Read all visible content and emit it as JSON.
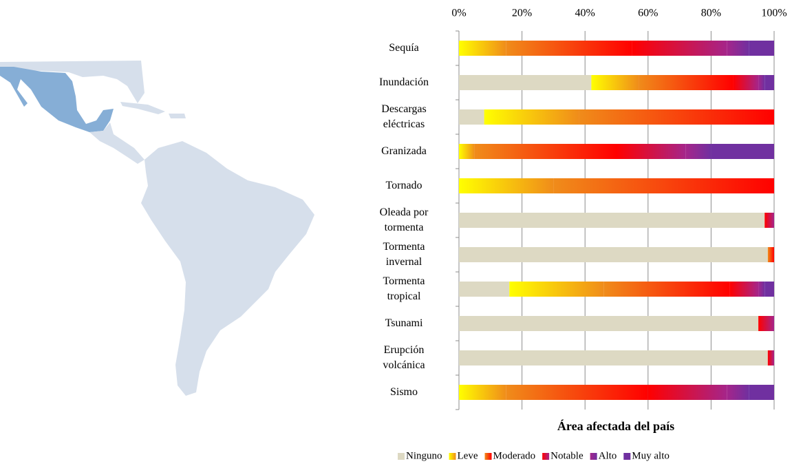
{
  "chart_data": {
    "type": "stacked_barh",
    "xlabel": "Área afectada del país",
    "categories": [
      "Sequía",
      "Inundación",
      "Descargas\neléctricas",
      "Granizada",
      "Tornado",
      "Oleada por\ntormenta",
      "Tormenta\ninvernal",
      "Tormenta\ntropical",
      "Tsunami",
      "Erupción\nvolcánica",
      "Sismo"
    ],
    "series": [
      {
        "name": "Ninguno",
        "color": "#ddd9c3",
        "values": [
          0,
          42,
          8,
          0,
          0,
          97,
          98,
          16,
          95,
          98,
          0
        ]
      },
      {
        "name": "Leve",
        "color": "#ffff00",
        "values": [
          15,
          15,
          30,
          5,
          30,
          0,
          0,
          30,
          0,
          0,
          15
        ]
      },
      {
        "name": "Moderado",
        "color": "#f08c1a",
        "values": [
          40,
          30,
          62,
          45,
          70,
          0,
          2,
          40,
          0,
          0,
          45
        ]
      },
      {
        "name": "Notable",
        "color": "#ff0000",
        "values": [
          30,
          8,
          0,
          22,
          0,
          3,
          0,
          9,
          5,
          2,
          25
        ]
      },
      {
        "name": "Alto",
        "color": "#a5258a",
        "values": [
          7,
          2,
          0,
          8,
          0,
          0,
          0,
          2,
          0,
          0,
          7
        ]
      },
      {
        "name": "Muy alto",
        "color": "#7030a0",
        "values": [
          8,
          3,
          0,
          20,
          0,
          0,
          0,
          3,
          0,
          0,
          8
        ]
      }
    ],
    "xlim": [
      0,
      100
    ],
    "xticks": [
      {
        "value": 0,
        "label": "0%"
      },
      {
        "value": 20,
        "label": "20%"
      },
      {
        "value": 40,
        "label": "40%"
      },
      {
        "value": 60,
        "label": "60%"
      },
      {
        "value": 80,
        "label": "80%"
      },
      {
        "value": 100,
        "label": "100%"
      }
    ],
    "grid": true
  }
}
